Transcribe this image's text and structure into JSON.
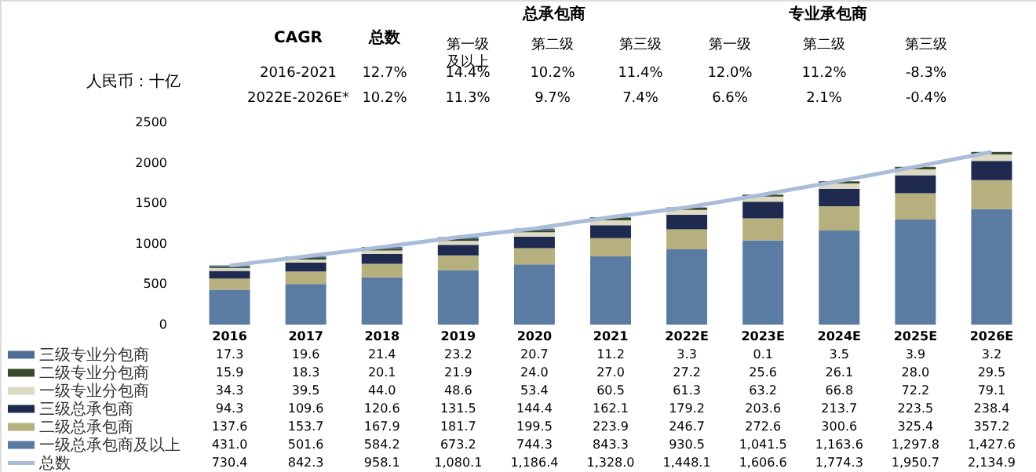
{
  "chart_data": {
    "type": "bar",
    "stacked": true,
    "ylabel": "人民币：十亿",
    "categories": [
      "2016",
      "2017",
      "2018",
      "2019",
      "2020",
      "2021",
      "2022E",
      "2023E",
      "2024E",
      "2025E",
      "2026E"
    ],
    "series": [
      {
        "name": "一级总承包商及以上",
        "color": "#5a7ca3",
        "values": [
          431.0,
          501.6,
          584.2,
          673.2,
          744.3,
          843.3,
          930.5,
          1041.5,
          1163.6,
          1297.8,
          1427.6
        ],
        "value_labels": [
          "431.0",
          "501.6",
          "584.2",
          "673.2",
          "744.3",
          "843.3",
          "930.5",
          "1,041.5",
          "1,163.6",
          "1,297.8",
          "1,427.6"
        ]
      },
      {
        "name": "二级总承包商",
        "color": "#b5b07e",
        "values": [
          137.6,
          153.7,
          167.9,
          181.7,
          199.5,
          223.9,
          246.7,
          272.6,
          300.6,
          325.4,
          357.2
        ],
        "value_labels": [
          "137.6",
          "153.7",
          "167.9",
          "181.7",
          "199.5",
          "223.9",
          "246.7",
          "272.6",
          "300.6",
          "325.4",
          "357.2"
        ]
      },
      {
        "name": "三级总承包商",
        "color": "#1e2a4f",
        "values": [
          94.3,
          109.6,
          120.6,
          131.5,
          144.4,
          162.1,
          179.2,
          203.6,
          213.7,
          223.5,
          238.4
        ],
        "value_labels": [
          "94.3",
          "109.6",
          "120.6",
          "131.5",
          "144.4",
          "162.1",
          "179.2",
          "203.6",
          "213.7",
          "223.5",
          "238.4"
        ]
      },
      {
        "name": "一级专业分包商",
        "color": "#dcdac3",
        "values": [
          34.3,
          39.5,
          44.0,
          48.6,
          53.4,
          60.5,
          61.3,
          63.2,
          66.8,
          72.2,
          79.1
        ],
        "value_labels": [
          "34.3",
          "39.5",
          "44.0",
          "48.6",
          "53.4",
          "60.5",
          "61.3",
          "63.2",
          "66.8",
          "72.2",
          "79.1"
        ]
      },
      {
        "name": "二级专业分包商",
        "color": "#3a4a2c",
        "values": [
          15.9,
          18.3,
          20.1,
          21.9,
          24.0,
          27.0,
          27.2,
          25.6,
          26.1,
          28.0,
          29.5
        ],
        "value_labels": [
          "15.9",
          "18.3",
          "20.1",
          "21.9",
          "24.0",
          "27.0",
          "27.2",
          "25.6",
          "26.1",
          "28.0",
          "29.5"
        ]
      },
      {
        "name": "三级专业分包商",
        "color": "#4f6f94",
        "values": [
          17.3,
          19.6,
          21.4,
          23.2,
          20.7,
          11.2,
          3.3,
          0.1,
          3.5,
          3.9,
          3.2
        ],
        "value_labels": [
          "17.3",
          "19.6",
          "21.4",
          "23.2",
          "20.7",
          "11.2",
          "3.3",
          "0.1",
          "3.5",
          "3.9",
          "3.2"
        ]
      },
      {
        "name": "总数",
        "type": "line",
        "color": "#a9bdd8",
        "values": [
          730.4,
          842.3,
          958.1,
          1080.1,
          1186.4,
          1328.0,
          1448.1,
          1606.6,
          1774.3,
          1950.7,
          2134.9
        ],
        "value_labels": [
          "730.4",
          "842.3",
          "958.1",
          "1,080.1",
          "1,186.4",
          "1,328.0",
          "1,448.1",
          "1,606.6",
          "1,774.3",
          "1,950.7",
          "2,134.9"
        ]
      }
    ],
    "ylim": [
      0,
      2500
    ],
    "yticks": [
      0,
      500,
      1000,
      1500,
      2000,
      2500
    ],
    "legend": "bottom left",
    "annotations": [
      "CAGR",
      "总数",
      "总承包商",
      "专业承包商",
      "第一级及以上",
      "第二级",
      "第三级",
      "第一级",
      "第二级",
      "第三级",
      "2016-2021",
      "12.7%",
      "14.4%",
      "10.2%",
      "11.4%",
      "12.0%",
      "11.2%",
      "-8.3%",
      "2022E-2026E*",
      "10.2%",
      "11.3%",
      "9.7%",
      "7.4%",
      "6.6%",
      "2.1%",
      "-0.4%"
    ]
  }
}
